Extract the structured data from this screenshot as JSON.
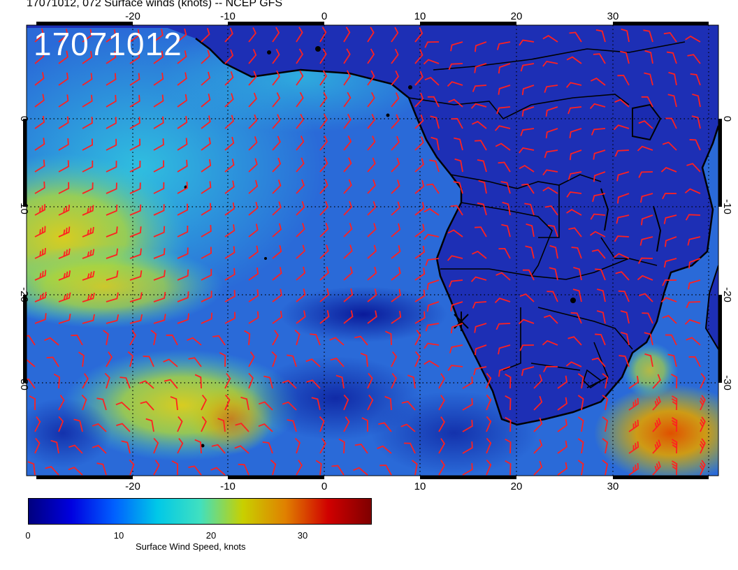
{
  "title": "17071012, 072 Surface winds (knots) -- NCEP GFS",
  "stamp": "17071012",
  "map": {
    "lon_ticks": [
      "-20",
      "-10",
      "0",
      "10",
      "20",
      "30"
    ],
    "lat_ticks": [
      "0",
      "-10",
      "-20",
      "-30"
    ],
    "lon_range": [
      -31,
      41
    ],
    "lat_range": [
      -40,
      10
    ],
    "land_color": "#1c2fb8",
    "ocean_color": "#2a6ad8",
    "barb_color": "#ff2020",
    "coast_color": "#000000"
  },
  "colorbar": {
    "label": "Surface Wind Speed, knots",
    "ticks": [
      "0",
      "10",
      "20",
      "30"
    ],
    "range": [
      0,
      38
    ],
    "colors": [
      "#00007f",
      "#0000e0",
      "#0060ff",
      "#00c8e8",
      "#40e0c0",
      "#c8d000",
      "#e08000",
      "#d00000",
      "#7f0000"
    ]
  }
}
